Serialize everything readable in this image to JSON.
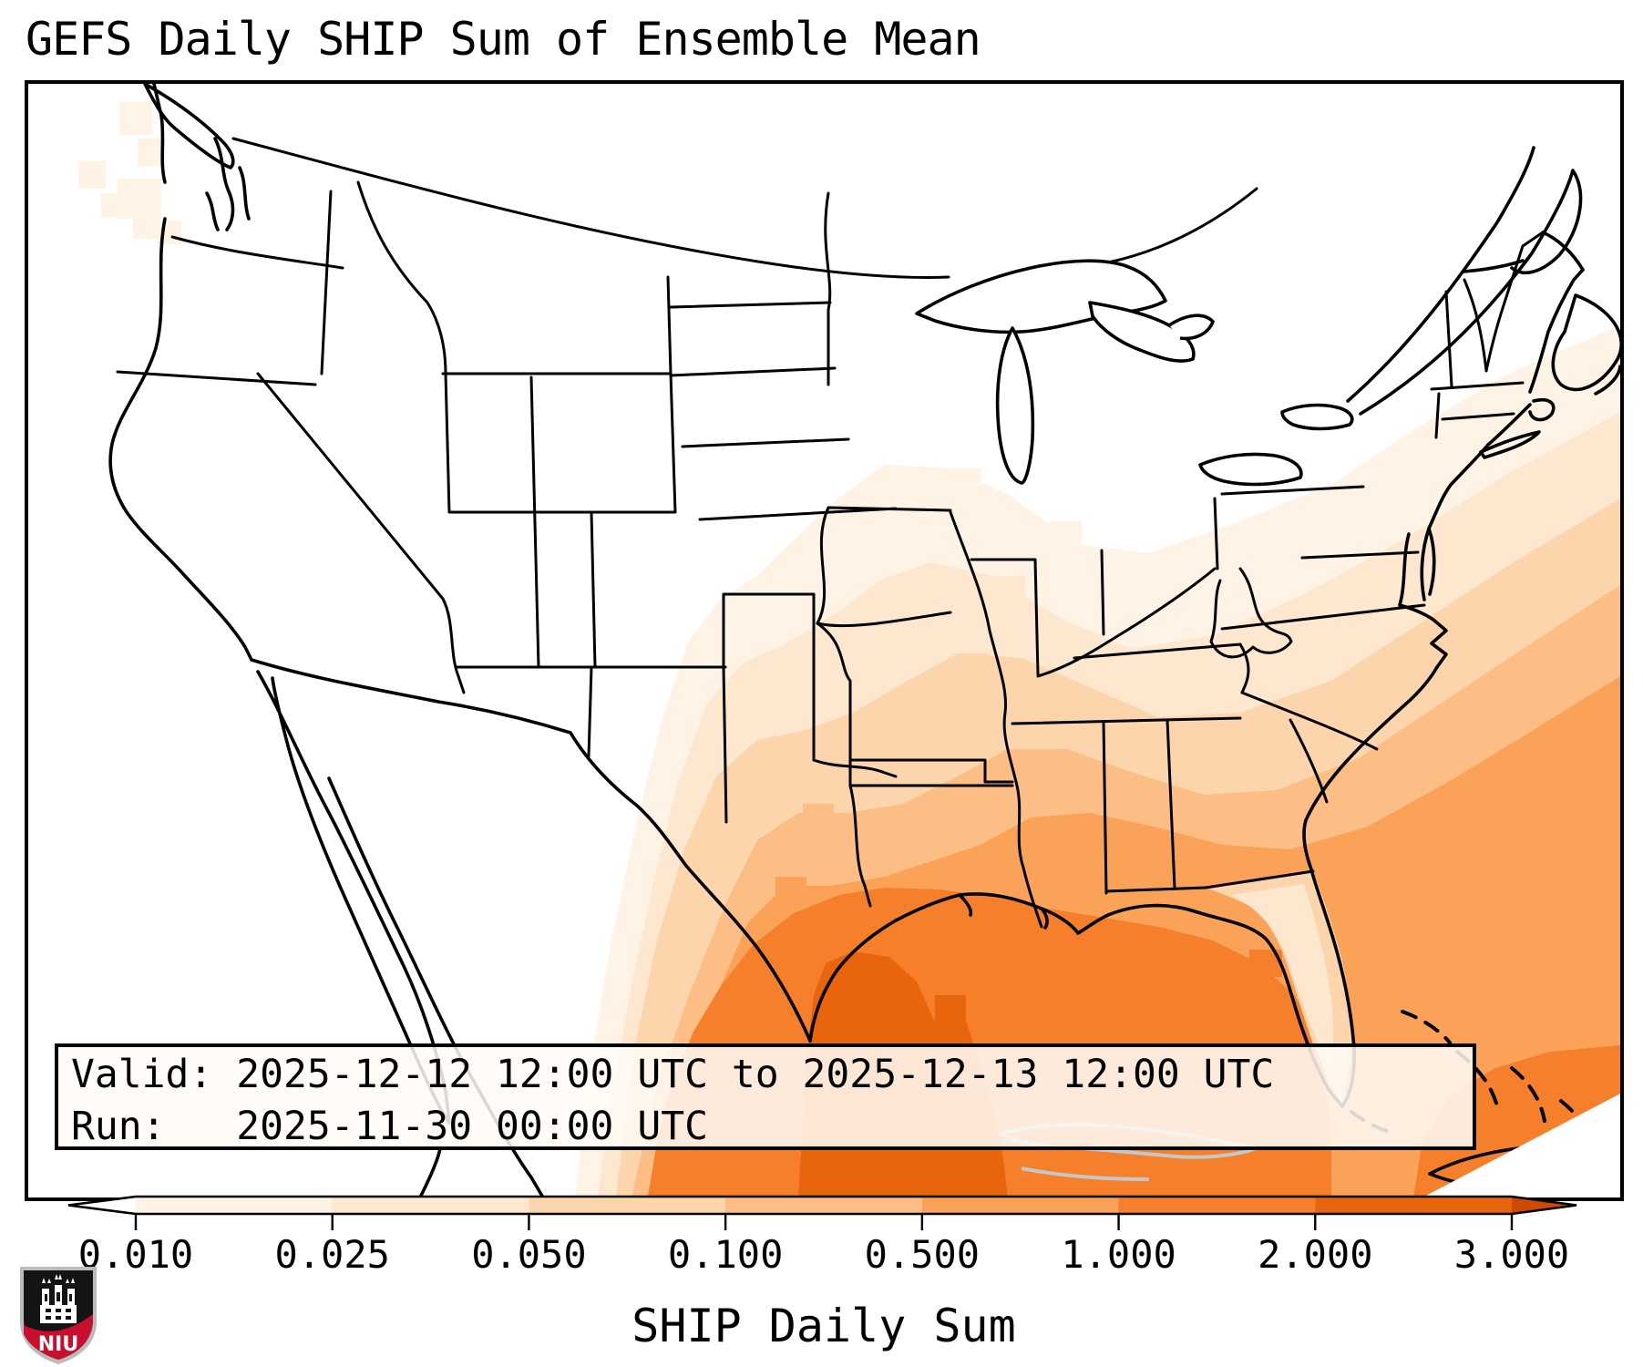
{
  "title": "GEFS Daily SHIP Sum of Ensemble Mean",
  "info_box": {
    "line1": "Valid: 2025-12-12 12:00 UTC to 2025-12-13 12:00 UTC",
    "line2": "Run:   2025-11-30 00:00 UTC"
  },
  "colorbar": {
    "label": "SHIP Daily Sum",
    "ticks": [
      "0.010",
      "0.025",
      "0.050",
      "0.100",
      "0.500",
      "1.000",
      "2.000",
      "3.000"
    ],
    "tick_values": [
      0.01,
      0.025,
      0.05,
      0.1,
      0.5,
      1.0,
      2.0,
      3.0
    ],
    "segment_colors": [
      "#fef3e5",
      "#fde7cf",
      "#fdd5ac",
      "#fcbe84",
      "#fba259",
      "#f57f2a",
      "#e8650e"
    ],
    "under_color": "#ffffff",
    "over_color": "#ce4a02",
    "outline_color": "#000000"
  },
  "chart_data": {
    "type": "heatmap",
    "title": "GEFS Daily SHIP Sum of Ensemble Mean",
    "colorbar_label": "SHIP Daily Sum",
    "levels": [
      0.01,
      0.025,
      0.05,
      0.1,
      0.5,
      1.0,
      2.0,
      3.0
    ],
    "palette": [
      "#fef3e5",
      "#fde7cf",
      "#fdd5ac",
      "#fcbe84",
      "#fba259",
      "#f57f2a",
      "#e8650e",
      "#ce4a02"
    ],
    "region": "CONUS and adjacent waters",
    "maxima_note": "Highest values (2-3) over the western Gulf of Mexico near the south Texas coast; broad 0.5-2 over Gulf of Mexico, Southeast coast and subtropical Atlantic; light values into Texas, Arkansas, lower Mississippi Valley and Pacific Northwest coast"
  },
  "logo": {
    "text": "NIU",
    "red": "#c8102e",
    "black": "#141414"
  }
}
